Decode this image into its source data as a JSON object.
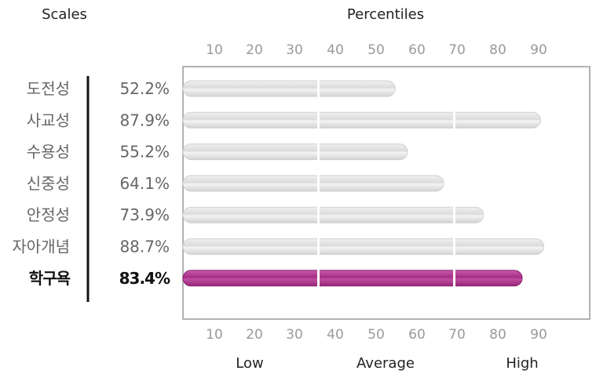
{
  "chart_data": {
    "type": "bar",
    "orientation": "horizontal",
    "scales_header": "Scales",
    "title": "Percentiles",
    "categories": [
      "도전성",
      "사교성",
      "수용성",
      "신중성",
      "안정성",
      "자아개념",
      "학구욕"
    ],
    "values": [
      52.2,
      87.9,
      55.2,
      64.1,
      73.9,
      88.7,
      83.4
    ],
    "value_labels": [
      "52.2%",
      "87.9%",
      "55.2%",
      "64.1%",
      "73.9%",
      "88.7%",
      "83.4%"
    ],
    "highlight_index": 6,
    "xticks": [
      "10",
      "20",
      "30",
      "40",
      "50",
      "60",
      "70",
      "80",
      "90"
    ],
    "xlim": [
      0,
      100
    ],
    "reference_lines": [
      33.3,
      66.7
    ],
    "bands": [
      "Low",
      "Average",
      "High"
    ],
    "colors": {
      "bar": "#e4e4e4",
      "bar_highlight": "#b03c92",
      "axis": "#999999",
      "separator": "#111111"
    }
  }
}
